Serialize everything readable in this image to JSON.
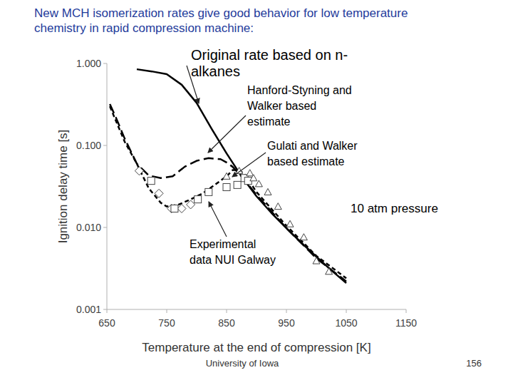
{
  "chart_data": {
    "type": "line",
    "title": "New MCH isomerization rates give good behavior for low temperature chemistry in rapid compression machine:",
    "x_label": "Temperature at the end of compression [K]",
    "y_label": "Ignition delay time [s]",
    "log": "y",
    "grid": false,
    "xlim": [
      650,
      1150
    ],
    "xticks": [
      650,
      750,
      850,
      950,
      1050,
      1150
    ],
    "ylim": [
      0.001,
      1
    ],
    "yticks": [
      0.001,
      {
        "value": 0.01,
        "label": "0.010"
      },
      {
        "value": 0.1,
        "label": "0.100"
      },
      {
        "value": 1,
        "label": "1.000"
      }
    ],
    "annotations": [
      "Experimental data NUI Galway",
      "10 atm pressure"
    ],
    "series": [
      {
        "name": "Original rate based on n-alkanes",
        "type": "line",
        "line_style": "solid",
        "color": "#000000",
        "x": [
          700,
          725,
          750,
          775,
          800,
          825,
          850,
          875,
          900,
          925,
          950,
          975,
          1000,
          1025,
          1050
        ],
        "values": [
          0.85,
          0.8,
          0.74,
          0.55,
          0.33,
          0.16,
          0.08,
          0.042,
          0.024,
          0.015,
          0.0098,
          0.0065,
          0.0044,
          0.003,
          0.0021
        ]
      },
      {
        "name": "Hanford-Styning and Walker based estimate",
        "type": "line",
        "line_style": "longdash",
        "color": "#000000",
        "x": [
          655,
          665,
          680,
          700,
          720,
          740,
          760,
          780,
          800,
          820,
          840,
          850,
          860,
          875,
          900,
          950,
          1000,
          1050
        ],
        "values": [
          0.32,
          0.22,
          0.12,
          0.06,
          0.043,
          0.04,
          0.042,
          0.055,
          0.065,
          0.07,
          0.068,
          0.062,
          0.055,
          0.042,
          0.025,
          0.0098,
          0.0042,
          0.0022
        ]
      },
      {
        "name": "Gulati and Walker based estimate",
        "type": "line",
        "line_style": "dashed",
        "color": "#000000",
        "x": [
          655,
          665,
          680,
          700,
          720,
          740,
          750,
          770,
          790,
          810,
          830,
          850,
          860,
          870,
          880,
          900,
          950,
          1000,
          1050
        ],
        "values": [
          0.3,
          0.2,
          0.11,
          0.06,
          0.03,
          0.02,
          0.018,
          0.019,
          0.022,
          0.026,
          0.033,
          0.042,
          0.05,
          0.05,
          0.045,
          0.027,
          0.0105,
          0.0045,
          0.0024
        ]
      },
      {
        "type": "scatter",
        "marker": "diamond",
        "color": "#444444",
        "x": [
          704,
          737,
          758,
          775,
          790
        ],
        "values": [
          0.049,
          0.026,
          0.017,
          0.017,
          0.019
        ]
      },
      {
        "type": "scatter",
        "marker": "square",
        "color": "#444444",
        "x": [
          724,
          763,
          802,
          820,
          850,
          868,
          880,
          886
        ],
        "values": [
          0.037,
          0.017,
          0.022,
          0.027,
          0.031,
          0.033,
          0.04,
          0.037
        ]
      },
      {
        "type": "scatter",
        "marker": "triangle",
        "color": "#444444",
        "x": [
          850,
          871,
          889,
          895,
          904,
          919,
          936,
          956,
          979,
          1000,
          1021
        ],
        "values": [
          0.042,
          0.049,
          0.046,
          0.04,
          0.034,
          0.027,
          0.018,
          0.011,
          0.0076,
          0.0039,
          0.0029
        ]
      }
    ]
  },
  "slide": {
    "footer": "University of Iowa",
    "page": 156
  }
}
